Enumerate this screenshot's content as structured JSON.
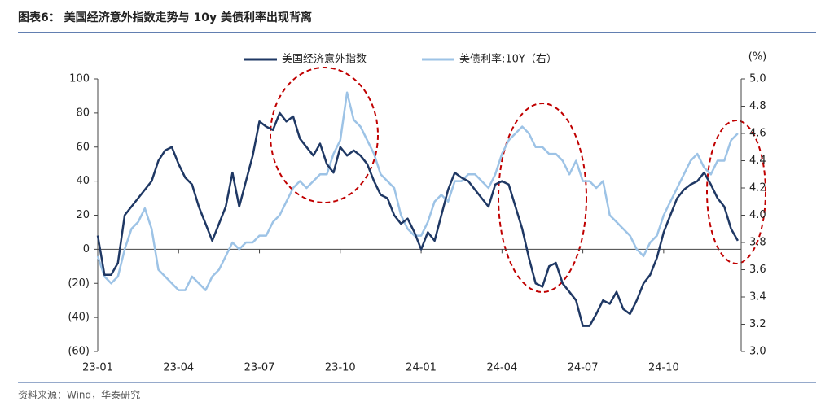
{
  "chart_data": {
    "type": "line",
    "title": "图表6：  美国经济意外指数走势与 10y 美债利率出现背离",
    "source": "资料来源：Wind，华泰研究",
    "y2_unit": "(%)",
    "categories": [
      "23-01",
      null,
      null,
      null,
      null,
      null,
      null,
      null,
      null,
      null,
      null,
      null,
      "23-04",
      null,
      null,
      null,
      null,
      null,
      null,
      null,
      null,
      null,
      null,
      null,
      "23-07",
      null,
      null,
      null,
      null,
      null,
      null,
      null,
      null,
      null,
      null,
      null,
      "23-10",
      null,
      null,
      null,
      null,
      null,
      null,
      null,
      null,
      null,
      null,
      null,
      "24-01",
      null,
      null,
      null,
      null,
      null,
      null,
      null,
      null,
      null,
      null,
      null,
      "24-04",
      null,
      null,
      null,
      null,
      null,
      null,
      null,
      null,
      null,
      null,
      null,
      "24-07",
      null,
      null,
      null,
      null,
      null,
      null,
      null,
      null,
      null,
      null,
      null,
      "24-10",
      null,
      null,
      null,
      null,
      null,
      null,
      null,
      null,
      null,
      null,
      null
    ],
    "series": [
      {
        "name": "美国经济意外指数",
        "color": "#1f3864",
        "axis": "y",
        "values": [
          8,
          -15,
          -15,
          -8,
          20,
          25,
          30,
          35,
          40,
          52,
          58,
          60,
          50,
          42,
          38,
          25,
          15,
          5,
          15,
          25,
          45,
          25,
          40,
          55,
          75,
          72,
          70,
          80,
          75,
          78,
          65,
          60,
          55,
          62,
          50,
          45,
          60,
          55,
          58,
          55,
          50,
          40,
          32,
          30,
          20,
          15,
          18,
          10,
          0,
          10,
          5,
          20,
          35,
          45,
          42,
          40,
          35,
          30,
          25,
          38,
          40,
          38,
          25,
          12,
          -5,
          -20,
          -22,
          -10,
          -8,
          -20,
          -25,
          -30,
          -45,
          -45,
          -38,
          -30,
          -32,
          -25,
          -35,
          -38,
          -30,
          -20,
          -15,
          -5,
          10,
          20,
          30,
          35,
          38,
          40,
          45,
          38,
          30,
          25,
          12,
          5
        ]
      },
      {
        "name": "美债利率:10Y（右）",
        "color": "#9dc3e6",
        "axis": "y2",
        "values": [
          3.7,
          3.55,
          3.5,
          3.55,
          3.75,
          3.9,
          3.95,
          4.05,
          3.9,
          3.6,
          3.55,
          3.5,
          3.45,
          3.45,
          3.55,
          3.5,
          3.45,
          3.55,
          3.6,
          3.7,
          3.8,
          3.75,
          3.8,
          3.8,
          3.85,
          3.85,
          3.95,
          4.0,
          4.1,
          4.2,
          4.25,
          4.2,
          4.25,
          4.3,
          4.3,
          4.45,
          4.55,
          4.9,
          4.7,
          4.65,
          4.55,
          4.45,
          4.3,
          4.25,
          4.2,
          4.0,
          3.9,
          3.85,
          3.85,
          3.95,
          4.1,
          4.15,
          4.1,
          4.25,
          4.25,
          4.3,
          4.3,
          4.25,
          4.2,
          4.3,
          4.45,
          4.55,
          4.6,
          4.65,
          4.6,
          4.5,
          4.5,
          4.45,
          4.45,
          4.4,
          4.3,
          4.4,
          4.25,
          4.25,
          4.2,
          4.25,
          4.0,
          3.95,
          3.9,
          3.85,
          3.75,
          3.7,
          3.8,
          3.85,
          4.0,
          4.1,
          4.2,
          4.3,
          4.4,
          4.45,
          4.35,
          4.3,
          4.4,
          4.4,
          4.55,
          4.6
        ]
      }
    ],
    "ylim": [
      -60,
      100
    ],
    "yticks": [
      100,
      80,
      60,
      40,
      20,
      0,
      {
        "value": -20,
        "label": "(20)"
      },
      {
        "value": -40,
        "label": "(40)"
      },
      {
        "value": -60,
        "label": "(60)"
      }
    ],
    "y2lim": [
      3.0,
      5.0
    ],
    "y2ticks": [
      {
        "value": 5,
        "label": "5.0"
      },
      {
        "value": 4.8,
        "label": "4.8"
      },
      {
        "value": 4.6,
        "label": "4.6"
      },
      {
        "value": 4.4,
        "label": "4.4"
      },
      {
        "value": 4.2,
        "label": "4.2"
      },
      {
        "value": 4,
        "label": "4.0"
      },
      {
        "value": 3.8,
        "label": "3.8"
      },
      {
        "value": 3.6,
        "label": "3.6"
      },
      {
        "value": 3.4,
        "label": "3.4"
      },
      {
        "value": 3.2,
        "label": "3.2"
      },
      {
        "value": 3,
        "label": "3.0"
      }
    ],
    "legend": "top"
  }
}
